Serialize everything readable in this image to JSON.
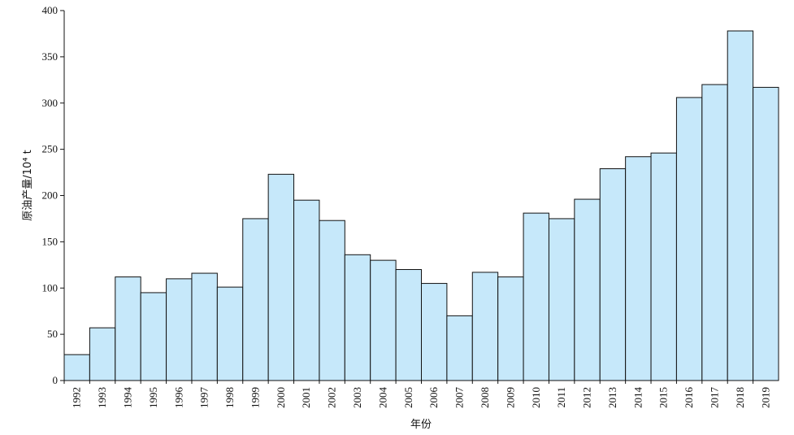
{
  "chart_data": {
    "type": "bar",
    "title": "",
    "xlabel": "年份",
    "ylabel": "原油产量/10⁴ t",
    "ylim": [
      0,
      400
    ],
    "yticks": [
      0,
      50,
      100,
      150,
      200,
      250,
      300,
      350,
      400
    ],
    "categories": [
      "1992",
      "1993",
      "1994",
      "1995",
      "1996",
      "1997",
      "1998",
      "1999",
      "2000",
      "2001",
      "2002",
      "2003",
      "2004",
      "2005",
      "2006",
      "2007",
      "2008",
      "2009",
      "2010",
      "2011",
      "2012",
      "2013",
      "2014",
      "2015",
      "2016",
      "2017",
      "2018",
      "2019"
    ],
    "series": [
      {
        "values": [
          28,
          57,
          112,
          95,
          110,
          116,
          101,
          175,
          223,
          195,
          173,
          136,
          130,
          120,
          105,
          70,
          117,
          112,
          181,
          175,
          196,
          229,
          242,
          246,
          306,
          320,
          378,
          317
        ]
      }
    ],
    "grid": false,
    "legend": "none",
    "colors": {
      "bar_fill": "#c6e8fa",
      "bar_stroke": "#111111",
      "axis": "#111111"
    }
  }
}
